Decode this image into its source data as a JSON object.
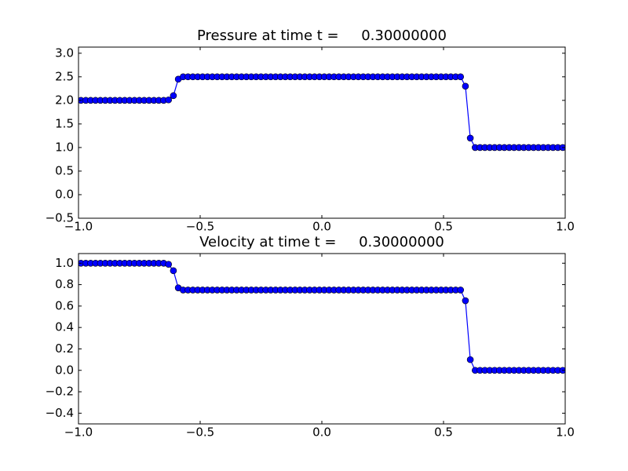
{
  "chart_data": [
    {
      "type": "line",
      "title": "Pressure at time t =     0.30000000",
      "color": "#0000ff",
      "marker": "circle",
      "x": [
        -0.99,
        -0.97,
        -0.95,
        -0.93,
        -0.91,
        -0.89,
        -0.87,
        -0.85,
        -0.83,
        -0.81,
        -0.79,
        -0.77,
        -0.75,
        -0.73,
        -0.71,
        -0.69,
        -0.67,
        -0.65,
        -0.63,
        -0.61,
        -0.59,
        -0.57,
        -0.55,
        -0.53,
        -0.51,
        -0.49,
        -0.47,
        -0.45,
        -0.43,
        -0.41,
        -0.39,
        -0.37,
        -0.35,
        -0.33,
        -0.31,
        -0.29,
        -0.27,
        -0.25,
        -0.23,
        -0.21,
        -0.19,
        -0.17,
        -0.15,
        -0.13,
        -0.11,
        -0.09,
        -0.07,
        -0.05,
        -0.03,
        -0.01,
        0.01,
        0.03,
        0.05,
        0.07,
        0.09,
        0.11,
        0.13,
        0.15,
        0.17,
        0.19,
        0.21,
        0.23,
        0.25,
        0.27,
        0.29,
        0.31,
        0.33,
        0.35,
        0.37,
        0.39,
        0.41,
        0.43,
        0.45,
        0.47,
        0.49,
        0.51,
        0.53,
        0.55,
        0.57,
        0.59,
        0.61,
        0.63,
        0.65,
        0.67,
        0.69,
        0.71,
        0.73,
        0.75,
        0.77,
        0.79,
        0.81,
        0.83,
        0.85,
        0.87,
        0.89,
        0.91,
        0.93,
        0.95,
        0.97,
        0.99
      ],
      "values": [
        2,
        2,
        2,
        2,
        2,
        2,
        2,
        2,
        2,
        2,
        2,
        2,
        2,
        2,
        2,
        2,
        2,
        2,
        2.01,
        2.1,
        2.45,
        2.5,
        2.5,
        2.5,
        2.5,
        2.5,
        2.5,
        2.5,
        2.5,
        2.5,
        2.5,
        2.5,
        2.5,
        2.5,
        2.5,
        2.5,
        2.5,
        2.5,
        2.5,
        2.5,
        2.5,
        2.5,
        2.5,
        2.5,
        2.5,
        2.5,
        2.5,
        2.5,
        2.5,
        2.5,
        2.5,
        2.5,
        2.5,
        2.5,
        2.5,
        2.5,
        2.5,
        2.5,
        2.5,
        2.5,
        2.5,
        2.5,
        2.5,
        2.5,
        2.5,
        2.5,
        2.5,
        2.5,
        2.5,
        2.5,
        2.5,
        2.5,
        2.5,
        2.5,
        2.5,
        2.5,
        2.5,
        2.5,
        2.5,
        2.3,
        1.2,
        1,
        1,
        1,
        1,
        1,
        1,
        1,
        1,
        1,
        1,
        1,
        1,
        1,
        1,
        1,
        1,
        1,
        1,
        1
      ],
      "xlim": [
        -1,
        1
      ],
      "xticks": [
        {
          "value": -1,
          "label": "−1.0"
        },
        {
          "value": -0.5,
          "label": "−0.5"
        },
        {
          "value": 0,
          "label": "0.0"
        },
        0.5,
        {
          "value": 1,
          "label": "1.0"
        }
      ],
      "ylim": [
        -0.5,
        3.13
      ],
      "yticks": [
        {
          "value": -0.5,
          "label": "−0.5"
        },
        {
          "value": 0,
          "label": "0.0"
        },
        0.5,
        {
          "value": 1,
          "label": "1.0"
        },
        1.5,
        {
          "value": 2,
          "label": "2.0"
        },
        2.5,
        {
          "value": 3,
          "label": "3.0"
        }
      ]
    },
    {
      "type": "line",
      "title": "Velocity at time t =     0.30000000",
      "color": "#0000ff",
      "marker": "circle",
      "x": [
        -0.99,
        -0.97,
        -0.95,
        -0.93,
        -0.91,
        -0.89,
        -0.87,
        -0.85,
        -0.83,
        -0.81,
        -0.79,
        -0.77,
        -0.75,
        -0.73,
        -0.71,
        -0.69,
        -0.67,
        -0.65,
        -0.63,
        -0.61,
        -0.59,
        -0.57,
        -0.55,
        -0.53,
        -0.51,
        -0.49,
        -0.47,
        -0.45,
        -0.43,
        -0.41,
        -0.39,
        -0.37,
        -0.35,
        -0.33,
        -0.31,
        -0.29,
        -0.27,
        -0.25,
        -0.23,
        -0.21,
        -0.19,
        -0.17,
        -0.15,
        -0.13,
        -0.11,
        -0.09,
        -0.07,
        -0.05,
        -0.03,
        -0.01,
        0.01,
        0.03,
        0.05,
        0.07,
        0.09,
        0.11,
        0.13,
        0.15,
        0.17,
        0.19,
        0.21,
        0.23,
        0.25,
        0.27,
        0.29,
        0.31,
        0.33,
        0.35,
        0.37,
        0.39,
        0.41,
        0.43,
        0.45,
        0.47,
        0.49,
        0.51,
        0.53,
        0.55,
        0.57,
        0.59,
        0.61,
        0.63,
        0.65,
        0.67,
        0.69,
        0.71,
        0.73,
        0.75,
        0.77,
        0.79,
        0.81,
        0.83,
        0.85,
        0.87,
        0.89,
        0.91,
        0.93,
        0.95,
        0.97,
        0.99
      ],
      "values": [
        1,
        1,
        1,
        1,
        1,
        1,
        1,
        1,
        1,
        1,
        1,
        1,
        1,
        1,
        1,
        1,
        1,
        1,
        0.99,
        0.93,
        0.77,
        0.75,
        0.75,
        0.75,
        0.75,
        0.75,
        0.75,
        0.75,
        0.75,
        0.75,
        0.75,
        0.75,
        0.75,
        0.75,
        0.75,
        0.75,
        0.75,
        0.75,
        0.75,
        0.75,
        0.75,
        0.75,
        0.75,
        0.75,
        0.75,
        0.75,
        0.75,
        0.75,
        0.75,
        0.75,
        0.75,
        0.75,
        0.75,
        0.75,
        0.75,
        0.75,
        0.75,
        0.75,
        0.75,
        0.75,
        0.75,
        0.75,
        0.75,
        0.75,
        0.75,
        0.75,
        0.75,
        0.75,
        0.75,
        0.75,
        0.75,
        0.75,
        0.75,
        0.75,
        0.75,
        0.75,
        0.75,
        0.75,
        0.75,
        0.65,
        0.1,
        0,
        0,
        0,
        0,
        0,
        0,
        0,
        0,
        0,
        0,
        0,
        0,
        0,
        0,
        0,
        0,
        0,
        0,
        0
      ],
      "xlim": [
        -1,
        1
      ],
      "xticks": [
        {
          "value": -1,
          "label": "−1.0"
        },
        {
          "value": -0.5,
          "label": "−0.5"
        },
        {
          "value": 0,
          "label": "0.0"
        },
        0.5,
        {
          "value": 1,
          "label": "1.0"
        }
      ],
      "ylim": [
        -0.5,
        1.09
      ],
      "yticks": [
        {
          "value": -0.4,
          "label": "−0.4"
        },
        {
          "value": -0.2,
          "label": "−0.2"
        },
        {
          "value": 0,
          "label": "0.0"
        },
        0.2,
        0.4,
        0.6,
        0.8,
        {
          "value": 1,
          "label": "1.0"
        }
      ]
    }
  ]
}
